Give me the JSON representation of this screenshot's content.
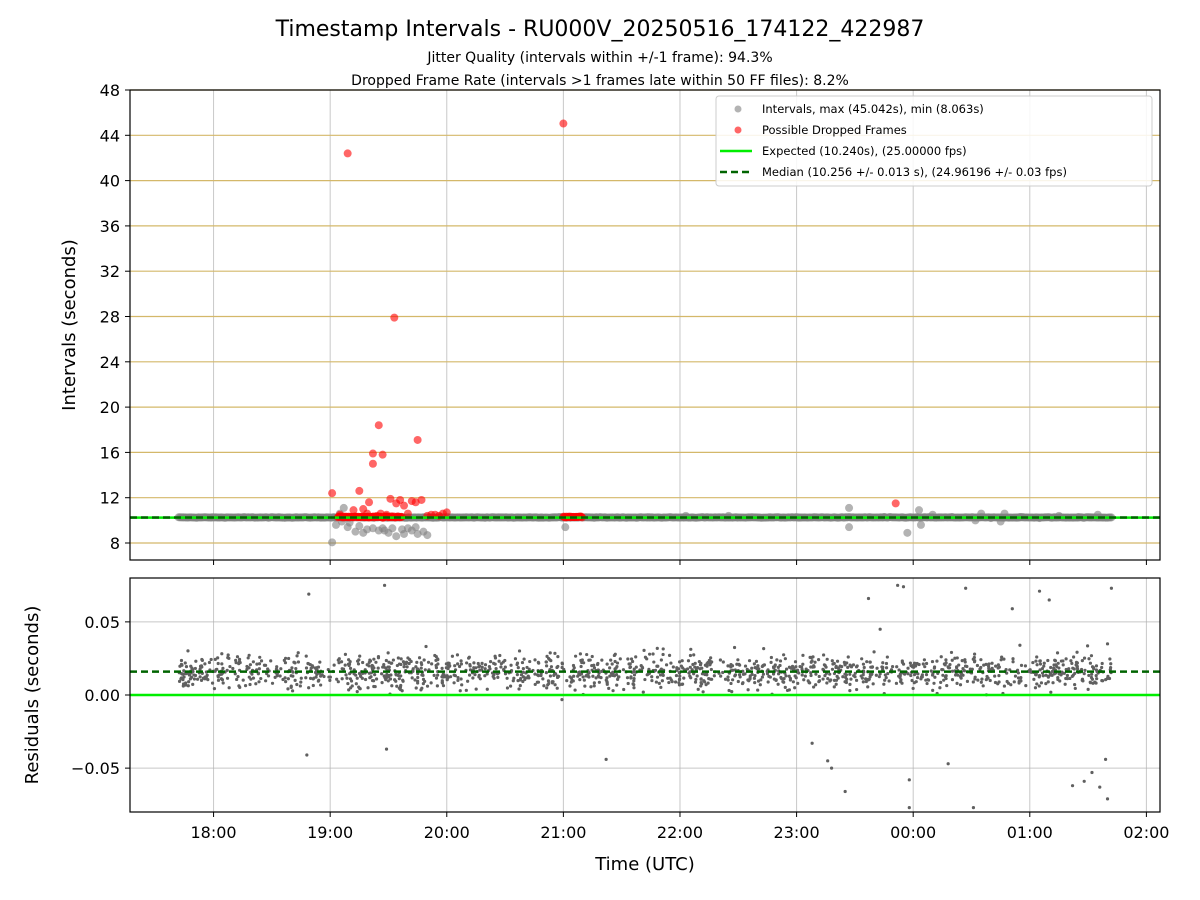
{
  "figure": {
    "title": "Timestamp Intervals - RU000V_20250516_174122_422987",
    "subtitle_1": "Jitter Quality (intervals within +/-1 frame): 94.3%",
    "subtitle_2": "Dropped Frame Rate (intervals >1 frames late within 50 FF files): 8.2%",
    "xlabel": "Time (UTC)"
  },
  "colors": {
    "intervals": "#808080",
    "dropped": "#ff0000",
    "expected": "#00ee00",
    "median": "#006400",
    "hgrid_top": "#d4b86a",
    "grid": "#b0b0b0",
    "residual_points": "#606060"
  },
  "chart_data": [
    {
      "type": "scatter",
      "panel": "intervals",
      "ylabel": "Intervals (seconds)",
      "xlim": [
        "17:17",
        "02:07"
      ],
      "ylim": [
        6.5,
        48
      ],
      "x_ticks": [
        "18:00",
        "19:00",
        "20:00",
        "21:00",
        "22:00",
        "23:00",
        "00:00",
        "01:00",
        "02:00"
      ],
      "y_ticks": [
        8,
        12,
        16,
        20,
        24,
        28,
        32,
        36,
        40,
        44,
        48
      ],
      "grid": true,
      "legend_position": "top-right",
      "legend": [
        "Intervals, max (45.042s), min (8.063s)",
        "Possible Dropped Frames",
        "Expected (10.240s), (25.00000 fps)",
        "Median (10.256 +/- 0.013 s), (24.96196 +/- 0.03 fps)"
      ],
      "series": [
        {
          "name": "Intervals, max (45.042s), min (8.063s)",
          "baseline_y": 10.256,
          "baseline_range": [
            "17:42",
            "01:42"
          ],
          "points": [
            [
              "19:01",
              8.06
            ],
            [
              "19:03",
              9.6
            ],
            [
              "19:05",
              10.6
            ],
            [
              "19:06",
              9.9
            ],
            [
              "19:07",
              11.1
            ],
            [
              "19:09",
              9.4
            ],
            [
              "19:10",
              9.8
            ],
            [
              "19:13",
              9.0
            ],
            [
              "19:15",
              9.5
            ],
            [
              "19:17",
              8.9
            ],
            [
              "19:19",
              9.2
            ],
            [
              "19:22",
              9.3
            ],
            [
              "19:25",
              9.1
            ],
            [
              "19:27",
              9.3
            ],
            [
              "19:28",
              9.1
            ],
            [
              "19:30",
              8.9
            ],
            [
              "19:32",
              9.3
            ],
            [
              "19:34",
              8.6
            ],
            [
              "19:37",
              9.2
            ],
            [
              "19:38",
              8.8
            ],
            [
              "19:40",
              9.3
            ],
            [
              "19:42",
              9.1
            ],
            [
              "19:44",
              9.4
            ],
            [
              "19:45",
              8.8
            ],
            [
              "19:48",
              9.0
            ],
            [
              "19:50",
              8.7
            ],
            [
              "21:01",
              9.4
            ],
            [
              "22:03",
              10.4
            ],
            [
              "22:25",
              10.4
            ],
            [
              "23:27",
              9.4
            ],
            [
              "23:27",
              11.1
            ],
            [
              "23:45",
              10.3
            ],
            [
              "23:57",
              8.9
            ],
            [
              "00:03",
              10.9
            ],
            [
              "00:04",
              9.6
            ],
            [
              "00:10",
              10.5
            ],
            [
              "00:20",
              10.3
            ],
            [
              "00:32",
              10.0
            ],
            [
              "00:35",
              10.6
            ],
            [
              "00:40",
              10.2
            ],
            [
              "00:45",
              9.9
            ],
            [
              "00:47",
              10.6
            ],
            [
              "00:55",
              10.3
            ],
            [
              "01:05",
              10.2
            ],
            [
              "01:15",
              10.4
            ],
            [
              "01:25",
              10.3
            ],
            [
              "01:35",
              10.5
            ]
          ]
        },
        {
          "name": "Possible Dropped Frames",
          "clusters": [
            {
              "from": "19:04",
              "to": "19:37",
              "y": 10.3
            },
            {
              "from": "21:00",
              "to": "21:10",
              "y": 10.3
            }
          ],
          "points": [
            [
              "19:01",
              12.4
            ],
            [
              "19:05",
              10.5
            ],
            [
              "19:09",
              42.4
            ],
            [
              "19:12",
              10.9
            ],
            [
              "19:15",
              12.6
            ],
            [
              "19:17",
              11.0
            ],
            [
              "19:19",
              10.6
            ],
            [
              "19:20",
              11.6
            ],
            [
              "19:22",
              15.9
            ],
            [
              "19:22",
              15.0
            ],
            [
              "19:24",
              10.4
            ],
            [
              "19:25",
              18.4
            ],
            [
              "19:26",
              10.6
            ],
            [
              "19:27",
              15.8
            ],
            [
              "19:29",
              10.5
            ],
            [
              "19:31",
              11.9
            ],
            [
              "19:33",
              27.9
            ],
            [
              "19:34",
              11.5
            ],
            [
              "19:36",
              11.8
            ],
            [
              "19:38",
              11.3
            ],
            [
              "19:40",
              10.6
            ],
            [
              "19:42",
              11.7
            ],
            [
              "19:44",
              11.6
            ],
            [
              "19:45",
              17.1
            ],
            [
              "19:47",
              11.8
            ],
            [
              "19:50",
              10.4
            ],
            [
              "19:52",
              10.5
            ],
            [
              "19:54",
              10.5
            ],
            [
              "19:56",
              10.4
            ],
            [
              "19:58",
              10.6
            ],
            [
              "20:00",
              10.7
            ],
            [
              "21:00",
              45.04
            ],
            [
              "23:51",
              11.5
            ]
          ]
        },
        {
          "name": "Expected (10.240s), (25.00000 fps)",
          "y": 10.24,
          "style": "solid"
        },
        {
          "name": "Median (10.256 +/- 0.013 s), (24.96196 +/- 0.03 fps)",
          "y": 10.256,
          "style": "dashed"
        }
      ]
    },
    {
      "type": "scatter",
      "panel": "residuals",
      "ylabel": "Residuals (seconds)",
      "xlim": [
        "17:17",
        "02:07"
      ],
      "ylim": [
        -0.08,
        0.08
      ],
      "y_ticks": [
        "−0.05",
        "0.00",
        "0.05"
      ],
      "y_tick_values": [
        -0.05,
        0,
        0.05
      ],
      "x_ticks": [
        "18:00",
        "19:00",
        "20:00",
        "21:00",
        "22:00",
        "23:00",
        "00:00",
        "01:00",
        "02:00"
      ],
      "grid": true,
      "series": [
        {
          "name": "",
          "dense_band": {
            "from": "17:42",
            "to": "01:42",
            "center": 0.016,
            "spread": 0.012,
            "count": 1500
          },
          "outliers": [
            [
              "18:49",
              0.069
            ],
            [
              "18:48",
              -0.041
            ],
            [
              "19:29",
              -0.037
            ],
            [
              "19:28",
              0.075
            ],
            [
              "21:22",
              -0.044
            ],
            [
              "23:08",
              -0.033
            ],
            [
              "23:16",
              -0.045
            ],
            [
              "23:18",
              -0.05
            ],
            [
              "23:25",
              -0.066
            ],
            [
              "23:37",
              0.066
            ],
            [
              "23:43",
              0.045
            ],
            [
              "23:52",
              0.075
            ],
            [
              "23:55",
              0.074
            ],
            [
              "23:58",
              -0.058
            ],
            [
              "23:58",
              -0.077
            ],
            [
              "00:18",
              -0.047
            ],
            [
              "00:27",
              0.073
            ],
            [
              "00:31",
              -0.077
            ],
            [
              "00:51",
              0.059
            ],
            [
              "01:05",
              0.071
            ],
            [
              "01:10",
              0.065
            ],
            [
              "01:22",
              -0.062
            ],
            [
              "01:28",
              -0.059
            ],
            [
              "01:32",
              -0.053
            ],
            [
              "01:36",
              -0.063
            ],
            [
              "01:40",
              -0.071
            ],
            [
              "01:40",
              0.035
            ],
            [
              "01:42",
              0.073
            ],
            [
              "01:39",
              -0.044
            ]
          ]
        },
        {
          "name": "Expected",
          "y": 0.0,
          "style": "solid"
        },
        {
          "name": "Median",
          "y": 0.016,
          "style": "dashed"
        }
      ]
    }
  ]
}
